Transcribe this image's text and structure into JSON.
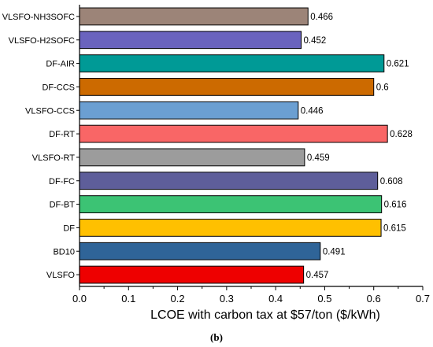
{
  "chart_data": {
    "type": "bar",
    "orientation": "horizontal",
    "categories": [
      "VLSFO-NH3SOFC",
      "VLSFO-H2SOFC",
      "DF-AIR",
      "DF-CCS",
      "VLSFO-CCS",
      "DF-RT",
      "VLSFO-RT",
      "DF-FC",
      "DF-BT",
      "DF",
      "BD10",
      "VLSFO"
    ],
    "values": [
      0.466,
      0.452,
      0.621,
      0.6,
      0.446,
      0.628,
      0.459,
      0.608,
      0.616,
      0.615,
      0.491,
      0.457
    ],
    "value_labels": [
      "0.466",
      "0.452",
      "0.621",
      "0.6",
      "0.446",
      "0.628",
      "0.459",
      "0.608",
      "0.616",
      "0.615",
      "0.491",
      "0.457"
    ],
    "colors": [
      "#9C8478",
      "#6A63BE",
      "#009A96",
      "#CC6A00",
      "#6B9FD2",
      "#F96666",
      "#9C9C9C",
      "#5E5E9A",
      "#3CC374",
      "#FFC000",
      "#2F6498",
      "#EE0000"
    ],
    "xlabel": "LCOE with carbon tax at $57/ton ($/kWh)",
    "ylabel": "",
    "xlim": [
      0.0,
      0.7
    ],
    "xticks": [
      "0.0",
      "0.1",
      "0.2",
      "0.3",
      "0.4",
      "0.5",
      "0.6",
      "0.7"
    ],
    "grid": false,
    "caption": "(b)"
  }
}
